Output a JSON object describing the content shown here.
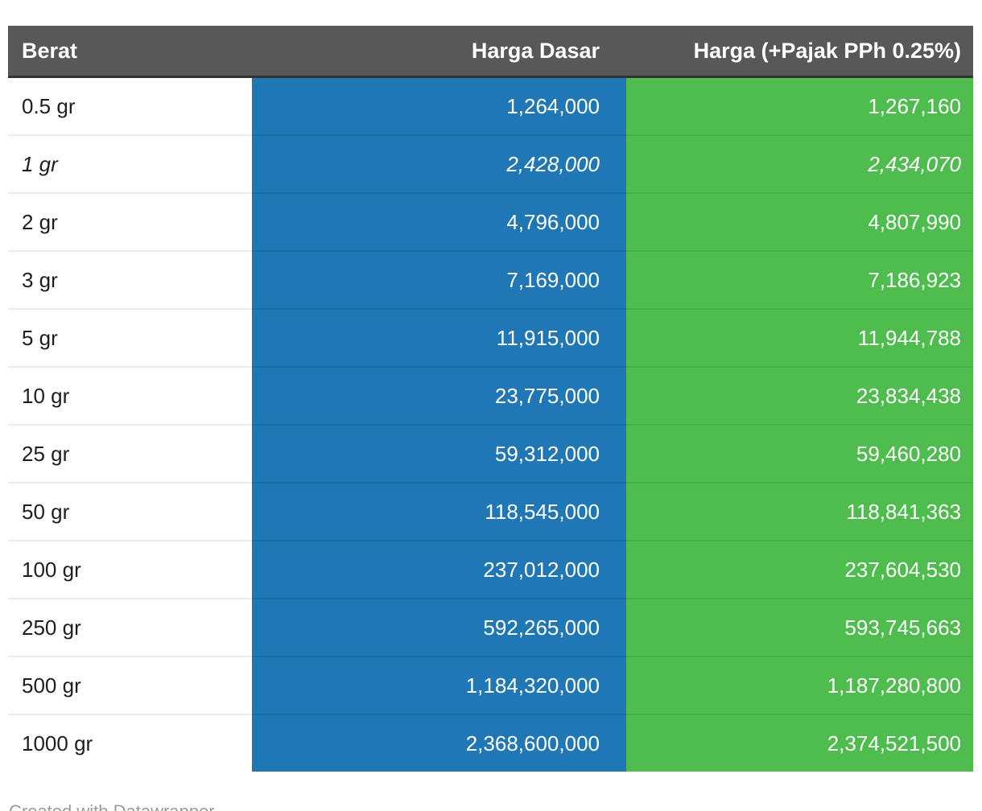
{
  "table": {
    "columns": [
      {
        "label": "Berat",
        "align": "left"
      },
      {
        "label": "Harga Dasar",
        "align": "right"
      },
      {
        "label": "Harga (+Pajak PPh 0.25%)",
        "align": "right"
      }
    ],
    "rows": [
      {
        "berat": "0.5 gr",
        "harga_dasar": "1,264,000",
        "harga_pajak": "1,267,160",
        "italic": false
      },
      {
        "berat": "1 gr",
        "harga_dasar": "2,428,000",
        "harga_pajak": "2,434,070",
        "italic": true
      },
      {
        "berat": "2 gr",
        "harga_dasar": "4,796,000",
        "harga_pajak": "4,807,990",
        "italic": false
      },
      {
        "berat": "3 gr",
        "harga_dasar": "7,169,000",
        "harga_pajak": "7,186,923",
        "italic": false
      },
      {
        "berat": "5 gr",
        "harga_dasar": "11,915,000",
        "harga_pajak": "11,944,788",
        "italic": false
      },
      {
        "berat": "10 gr",
        "harga_dasar": "23,775,000",
        "harga_pajak": "23,834,438",
        "italic": false
      },
      {
        "berat": "25 gr",
        "harga_dasar": "59,312,000",
        "harga_pajak": "59,460,280",
        "italic": false
      },
      {
        "berat": "50 gr",
        "harga_dasar": "118,545,000",
        "harga_pajak": "118,841,363",
        "italic": false
      },
      {
        "berat": "100 gr",
        "harga_dasar": "237,012,000",
        "harga_pajak": "237,604,530",
        "italic": false
      },
      {
        "berat": "250 gr",
        "harga_dasar": "592,265,000",
        "harga_pajak": "593,745,663",
        "italic": false
      },
      {
        "berat": "500 gr",
        "harga_dasar": "1,184,320,000",
        "harga_pajak": "1,187,280,800",
        "italic": false
      },
      {
        "berat": "1000 gr",
        "harga_dasar": "2,368,600,000",
        "harga_pajak": "2,374,521,500",
        "italic": false
      }
    ]
  },
  "footer": {
    "attribution": "Created with Datawrapper"
  },
  "colors": {
    "header_bg": "#58585a",
    "header_border": "#333333",
    "harga_dasar_column": "#2077b5",
    "harga_pajak_column": "#4ebd4e",
    "row_text": "#1e1e1e",
    "value_text": "#ffffff",
    "attribution_text": "#9b9b9b"
  },
  "chart_data": {
    "type": "table",
    "columns": [
      "Berat",
      "Harga Dasar",
      "Harga (+Pajak PPh 0.25%)"
    ],
    "rows": [
      [
        "0.5 gr",
        1264000,
        1267160
      ],
      [
        "1 gr",
        2428000,
        2434070
      ],
      [
        "2 gr",
        4796000,
        4807990
      ],
      [
        "3 gr",
        7169000,
        7186923
      ],
      [
        "5 gr",
        11915000,
        11944788
      ],
      [
        "10 gr",
        23775000,
        23834438
      ],
      [
        "25 gr",
        59312000,
        59460280
      ],
      [
        "50 gr",
        118545000,
        118841363
      ],
      [
        "100 gr",
        237012000,
        237604530
      ],
      [
        "250 gr",
        592265000,
        593745663
      ],
      [
        "500 gr",
        1184320000,
        1187280800
      ],
      [
        "1000 gr",
        2368600000,
        2374521500
      ]
    ],
    "notes": "Column 2 highlighted blue, column 3 highlighted green; '1 gr' row rendered in italics",
    "attribution": "Created with Datawrapper"
  }
}
